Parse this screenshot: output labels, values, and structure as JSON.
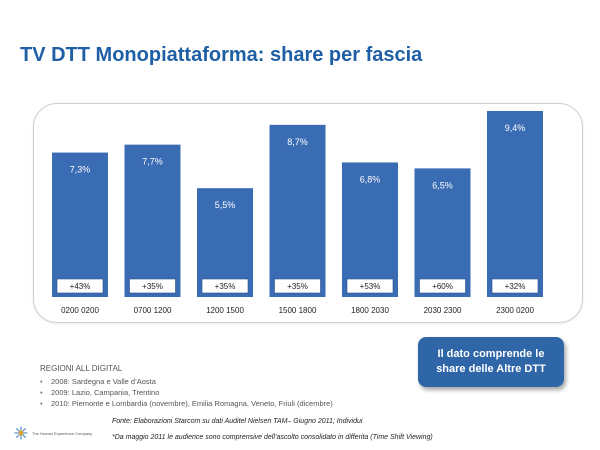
{
  "page": {
    "title": "TV DTT Monopiattaforma: share per fascia",
    "regions": {
      "title": "REGIONI ALL DIGITAL",
      "items": [
        "2008: Sardegna e Valle d’Aosta",
        "2009: Lazio, Campania, Trentino",
        "2010: Piemonte e Lombardia (novembre), Emilia Romagna, Veneto, Friuli (dicembre)"
      ]
    },
    "callout": {
      "line1": "Il dato comprende le",
      "line2": "share delle Altre DTT"
    },
    "source": "Fonte: Elaborazioni Starcom su dati Auditel Nielsen TAM– Giugno 2011; Individui",
    "footnote": "*Da maggio 2011 le audience sono comprensive dell’ascolto consolidato in differita (Time Shift Viewing)",
    "company": "The Human Experience Company",
    "colors": {
      "bar": "#3a6cb4",
      "title": "#1f5fa5",
      "callout": "#2f66a8"
    }
  },
  "chart_data": {
    "type": "bar",
    "categories": [
      "0200 0200",
      "0700 1200",
      "1200 1500",
      "1500 1800",
      "1800 2030",
      "2030 2300",
      "2300 0200"
    ],
    "values": [
      7.3,
      7.7,
      5.5,
      8.7,
      6.8,
      6.5,
      9.4
    ],
    "value_labels": [
      "7,3%",
      "7,7%",
      "5,5%",
      "8,7%",
      "6,8%",
      "6,5%",
      "9,4%"
    ],
    "growth_labels": [
      "+43%",
      "+35%",
      "+35%",
      "+35%",
      "+53%",
      "+60%",
      "+32%"
    ],
    "ylim": [
      0,
      9.4
    ],
    "grid": false,
    "legend": "none"
  }
}
